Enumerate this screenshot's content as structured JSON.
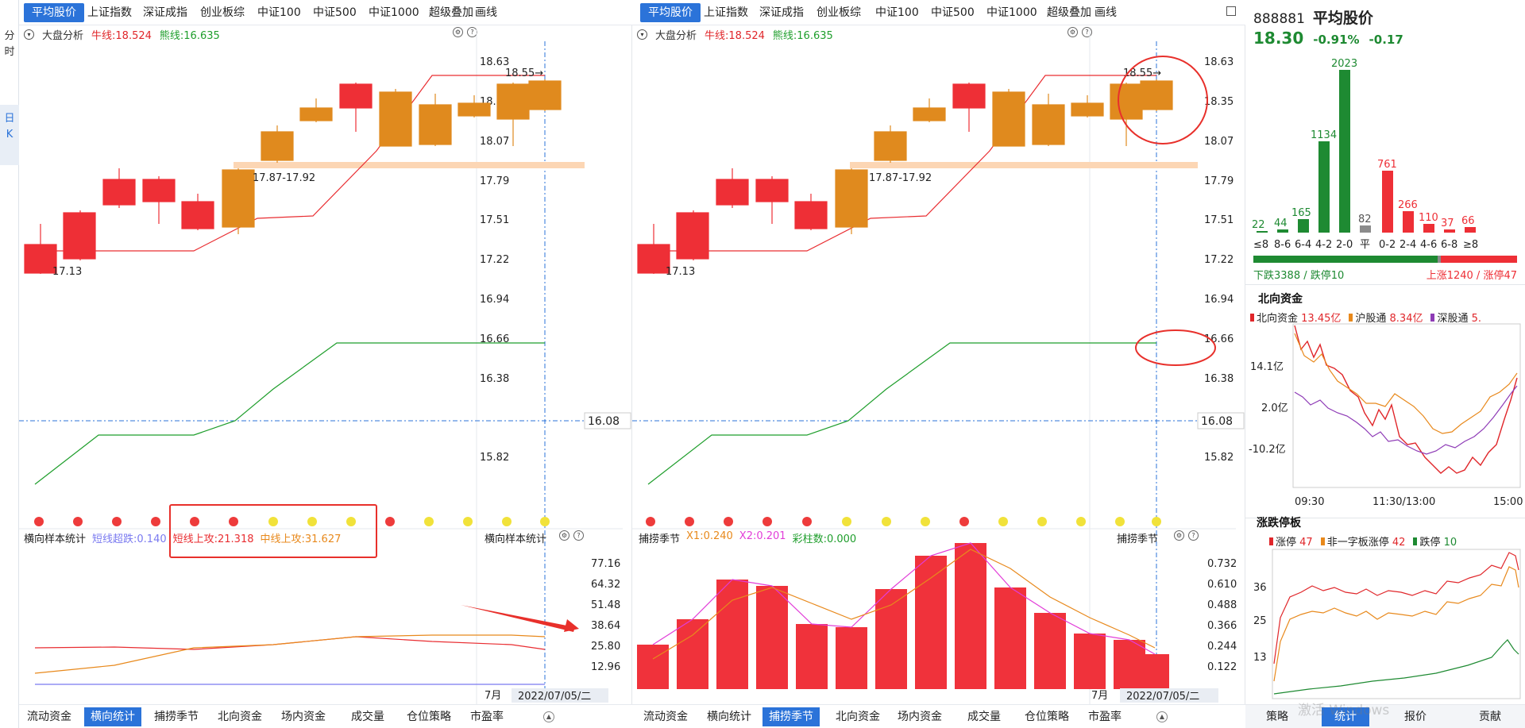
{
  "left_rail": {
    "items": [
      {
        "label": "分\n时",
        "active": false
      },
      {
        "label": "日\nK",
        "active": true
      }
    ]
  },
  "panes": [
    {
      "tabs": [
        "平均股价",
        "上证指数",
        "深证成指",
        "创业板综",
        "中证100",
        "中证500",
        "中证1000",
        "超级叠加",
        "画线"
      ],
      "active_tab": 0,
      "sub": {
        "title": "大盘分析",
        "bull": "牛线:18.524",
        "bear": "熊线:16.635"
      },
      "price_labels": [
        "18.63",
        "18.35",
        "18.07",
        "17.79",
        "17.51",
        "17.22",
        "16.94",
        "16.66",
        "16.38",
        "16.08",
        "15.82"
      ],
      "crosshair_value": "16.08",
      "annotations": {
        "high": "18.55→",
        "low": "17.13",
        "zone": "17.87-17.92"
      },
      "indicator": {
        "name": "横向样本统计",
        "short": "短线超跌:0.140",
        "short_up": "短线上攻:21.318",
        "mid_up": "中线上攻:31.627",
        "right_label": "横向样本统计"
      },
      "ind_labels": [
        "77.16",
        "64.32",
        "51.48",
        "38.64",
        "25.80",
        "12.96"
      ],
      "month": "7月",
      "date": "2022/07/05/二",
      "bottom_tabs": [
        "流动资金",
        "横向统计",
        "捕捞季节",
        "北向资金",
        "场内资金",
        "成交量",
        "仓位策略",
        "市盈率"
      ],
      "bottom_active": 1
    },
    {
      "tabs": [
        "平均股价",
        "上证指数",
        "深证成指",
        "创业板综",
        "中证100",
        "中证500",
        "中证1000",
        "超级叠加",
        "画线"
      ],
      "active_tab": 0,
      "sub": {
        "title": "大盘分析",
        "bull": "牛线:18.524",
        "bear": "熊线:16.635"
      },
      "price_labels": [
        "18.63",
        "18.35",
        "18.07",
        "17.79",
        "17.51",
        "17.22",
        "16.94",
        "16.66",
        "16.38",
        "16.08",
        "15.82"
      ],
      "crosshair_value": "16.08",
      "annotations": {
        "high": "18.55→",
        "low": "17.13",
        "zone": "17.87-17.92"
      },
      "indicator": {
        "name": "捕捞季节",
        "x1": "X1:0.240",
        "x2": "X2:0.201",
        "bars": "彩柱数:0.000",
        "right_label": "捕捞季节"
      },
      "ind_labels": [
        "0.732",
        "0.610",
        "0.488",
        "0.366",
        "0.244",
        "0.122"
      ],
      "month": "7月",
      "date": "2022/07/05/二",
      "bottom_tabs": [
        "流动资金",
        "横向统计",
        "捕捞季节",
        "北向资金",
        "场内资金",
        "成交量",
        "仓位策略",
        "市盈率"
      ],
      "bottom_active": 2
    }
  ],
  "dist": {
    "code": "888881",
    "name": "平均股价",
    "price": "18.30",
    "pct": "-0.91%",
    "chg": "-0.17",
    "bars": [
      {
        "label": "≤8",
        "value": "22"
      },
      {
        "label": "8-6",
        "value": "44"
      },
      {
        "label": "6-4",
        "value": "165"
      },
      {
        "label": "4-2",
        "value": "1134"
      },
      {
        "label": "2-0",
        "value": "2023"
      },
      {
        "label": "平",
        "value": "82"
      },
      {
        "label": "0-2",
        "value": "761"
      },
      {
        "label": "2-4",
        "value": "266"
      },
      {
        "label": "4-6",
        "value": "110"
      },
      {
        "label": "6-8",
        "value": "37"
      },
      {
        "label": "≥8",
        "value": "66"
      }
    ],
    "down": "下跌3388 / 跌停10",
    "up": "上涨1240 / 涨停47"
  },
  "north": {
    "title": "北向资金",
    "legend": [
      {
        "name": "北向资金",
        "value": "13.45亿"
      },
      {
        "name": "沪股通",
        "value": "8.34亿"
      },
      {
        "name": "深股通",
        "value": "5."
      }
    ],
    "ylabels": [
      "14.1亿",
      "2.0亿",
      "-10.2亿"
    ],
    "xlabels": [
      "09:30",
      "11:30/13:00",
      "15:00"
    ]
  },
  "limit": {
    "title": "涨跌停板",
    "legend": [
      {
        "name": "涨停",
        "value": "47"
      },
      {
        "name": "非一字板涨停",
        "value": "42"
      },
      {
        "name": "跌停",
        "value": "10"
      }
    ],
    "ylabels": [
      "36",
      "25",
      "13"
    ]
  },
  "right_bottom_tabs": [
    "策略",
    "统计",
    "报价",
    "贡献"
  ],
  "right_bottom_active": 1,
  "watermark": "激活 Windows",
  "colors": {
    "accent": "#2b73d9",
    "up": "#ee2f36",
    "down": "#1e8a32",
    "candle_orange": "#e08a1e"
  }
}
